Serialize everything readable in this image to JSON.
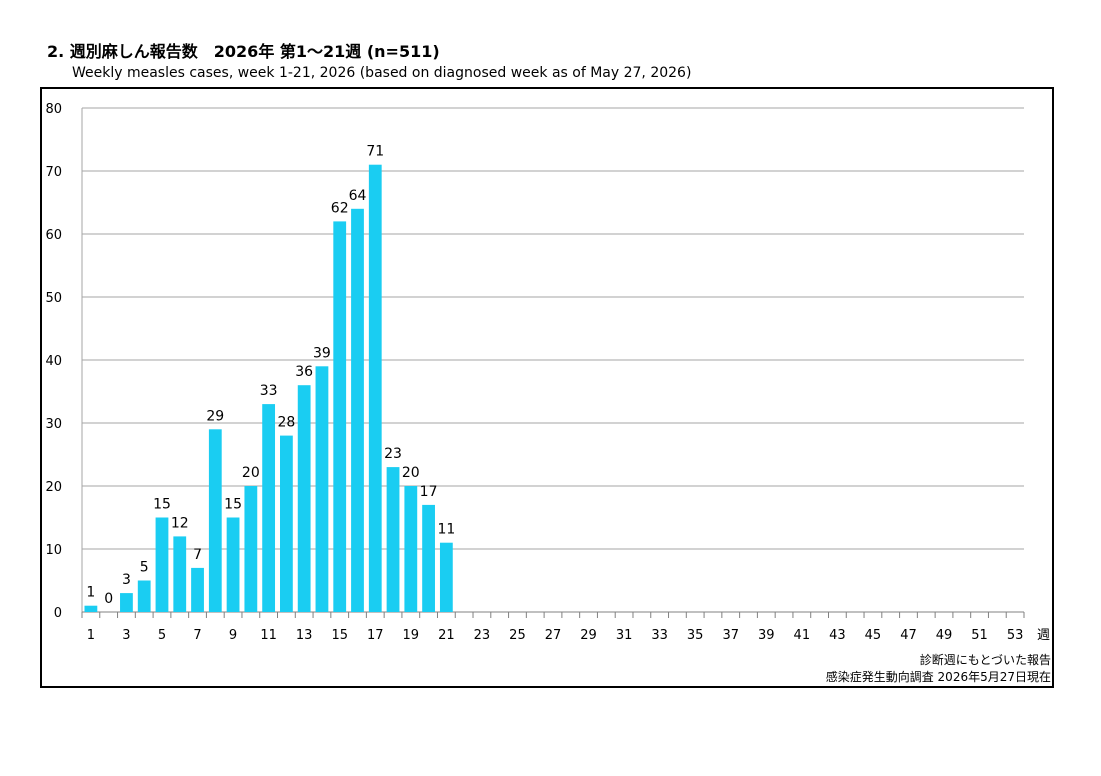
{
  "chart_data": {
    "type": "bar",
    "title": "2. 週別麻しん報告数　2026年 第1～21週 (n=511)",
    "subtitle": "Weekly measles cases, week 1-21, 2026 (based on diagnosed week as of May 27, 2026)",
    "xlabel": "週",
    "ylabel": "",
    "ylim": [
      0,
      80
    ],
    "yticks": [
      0,
      10,
      20,
      30,
      40,
      50,
      60,
      70,
      80
    ],
    "x_weeks": [
      1,
      53
    ],
    "xtick_labels": [
      "1",
      "3",
      "5",
      "7",
      "9",
      "11",
      "13",
      "15",
      "17",
      "19",
      "21",
      "23",
      "25",
      "27",
      "29",
      "31",
      "33",
      "35",
      "37",
      "39",
      "41",
      "43",
      "45",
      "47",
      "49",
      "51",
      "53"
    ],
    "grid": true,
    "bar_color": "#1ACDF2",
    "series": [
      {
        "x": [
          1,
          2,
          3,
          4,
          5,
          6,
          7,
          8,
          9,
          10,
          11,
          12,
          13,
          14,
          15,
          16,
          17,
          18,
          19,
          20,
          21
        ],
        "values": [
          1,
          0,
          3,
          5,
          15,
          12,
          7,
          29,
          15,
          20,
          33,
          28,
          36,
          39,
          62,
          64,
          71,
          23,
          20,
          17,
          11
        ]
      }
    ],
    "notes": [
      "診断週にもとづいた報告",
      "感染症発生動向調査 2026年5月27日現在"
    ]
  }
}
